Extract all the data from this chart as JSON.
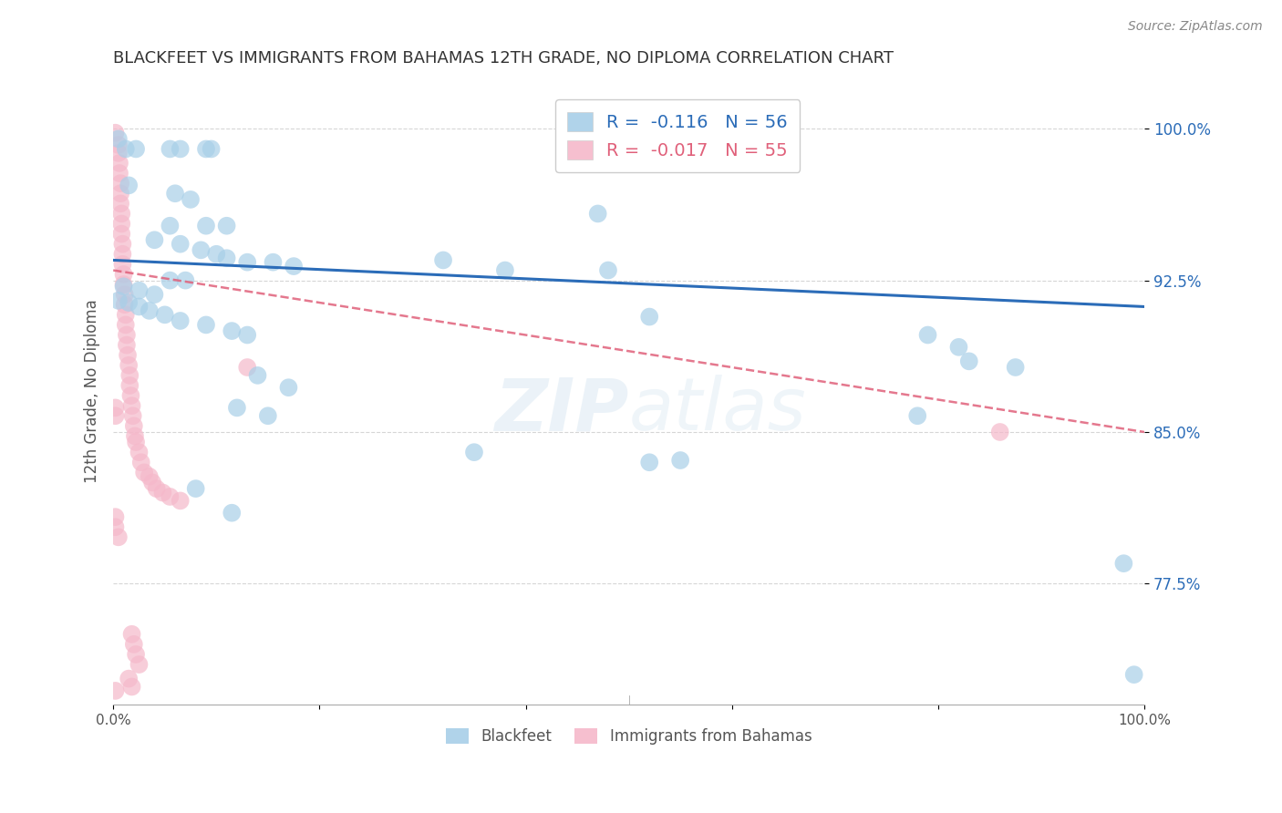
{
  "title": "BLACKFEET VS IMMIGRANTS FROM BAHAMAS 12TH GRADE, NO DIPLOMA CORRELATION CHART",
  "source": "Source: ZipAtlas.com",
  "ylabel": "12th Grade, No Diploma",
  "legend_label1": "Blackfeet",
  "legend_label2": "Immigrants from Bahamas",
  "r1": "-0.116",
  "n1": "56",
  "r2": "-0.017",
  "n2": "55",
  "watermark": "ZIPatlas",
  "xmin": 0.0,
  "xmax": 1.0,
  "ymin": 0.715,
  "ymax": 1.025,
  "yticks": [
    0.775,
    0.85,
    0.925,
    1.0
  ],
  "ytick_labels": [
    "77.5%",
    "85.0%",
    "92.5%",
    "100.0%"
  ],
  "blue_color": "#a8cfe8",
  "pink_color": "#f5b8ca",
  "blue_line_color": "#2b6cb8",
  "pink_line_color": "#e0607a",
  "blue_scatter": [
    [
      0.005,
      0.995
    ],
    [
      0.012,
      0.99
    ],
    [
      0.022,
      0.99
    ],
    [
      0.055,
      0.99
    ],
    [
      0.065,
      0.99
    ],
    [
      0.09,
      0.99
    ],
    [
      0.095,
      0.99
    ],
    [
      0.015,
      0.972
    ],
    [
      0.06,
      0.968
    ],
    [
      0.075,
      0.965
    ],
    [
      0.055,
      0.952
    ],
    [
      0.09,
      0.952
    ],
    [
      0.11,
      0.952
    ],
    [
      0.04,
      0.945
    ],
    [
      0.065,
      0.943
    ],
    [
      0.085,
      0.94
    ],
    [
      0.1,
      0.938
    ],
    [
      0.11,
      0.936
    ],
    [
      0.13,
      0.934
    ],
    [
      0.155,
      0.934
    ],
    [
      0.175,
      0.932
    ],
    [
      0.055,
      0.925
    ],
    [
      0.07,
      0.925
    ],
    [
      0.01,
      0.922
    ],
    [
      0.025,
      0.92
    ],
    [
      0.04,
      0.918
    ],
    [
      0.005,
      0.915
    ],
    [
      0.015,
      0.914
    ],
    [
      0.025,
      0.912
    ],
    [
      0.035,
      0.91
    ],
    [
      0.05,
      0.908
    ],
    [
      0.065,
      0.905
    ],
    [
      0.09,
      0.903
    ],
    [
      0.115,
      0.9
    ],
    [
      0.13,
      0.898
    ],
    [
      0.32,
      0.935
    ],
    [
      0.38,
      0.93
    ],
    [
      0.47,
      0.958
    ],
    [
      0.48,
      0.93
    ],
    [
      0.52,
      0.907
    ],
    [
      0.14,
      0.878
    ],
    [
      0.17,
      0.872
    ],
    [
      0.12,
      0.862
    ],
    [
      0.15,
      0.858
    ],
    [
      0.79,
      0.898
    ],
    [
      0.82,
      0.892
    ],
    [
      0.83,
      0.885
    ],
    [
      0.875,
      0.882
    ],
    [
      0.78,
      0.858
    ],
    [
      0.55,
      0.836
    ],
    [
      0.08,
      0.822
    ],
    [
      0.115,
      0.81
    ],
    [
      0.35,
      0.84
    ],
    [
      0.52,
      0.835
    ],
    [
      0.98,
      0.785
    ],
    [
      0.99,
      0.73
    ]
  ],
  "pink_scatter": [
    [
      0.002,
      0.998
    ],
    [
      0.005,
      0.992
    ],
    [
      0.005,
      0.988
    ],
    [
      0.006,
      0.983
    ],
    [
      0.006,
      0.978
    ],
    [
      0.007,
      0.973
    ],
    [
      0.007,
      0.968
    ],
    [
      0.007,
      0.963
    ],
    [
      0.008,
      0.958
    ],
    [
      0.008,
      0.953
    ],
    [
      0.008,
      0.948
    ],
    [
      0.009,
      0.943
    ],
    [
      0.009,
      0.938
    ],
    [
      0.009,
      0.933
    ],
    [
      0.01,
      0.928
    ],
    [
      0.01,
      0.923
    ],
    [
      0.011,
      0.918
    ],
    [
      0.011,
      0.913
    ],
    [
      0.012,
      0.908
    ],
    [
      0.012,
      0.903
    ],
    [
      0.013,
      0.898
    ],
    [
      0.013,
      0.893
    ],
    [
      0.014,
      0.888
    ],
    [
      0.015,
      0.883
    ],
    [
      0.016,
      0.878
    ],
    [
      0.016,
      0.873
    ],
    [
      0.017,
      0.868
    ],
    [
      0.018,
      0.863
    ],
    [
      0.019,
      0.858
    ],
    [
      0.02,
      0.853
    ],
    [
      0.021,
      0.848
    ],
    [
      0.022,
      0.845
    ],
    [
      0.025,
      0.84
    ],
    [
      0.027,
      0.835
    ],
    [
      0.03,
      0.83
    ],
    [
      0.035,
      0.828
    ],
    [
      0.038,
      0.825
    ],
    [
      0.042,
      0.822
    ],
    [
      0.048,
      0.82
    ],
    [
      0.055,
      0.818
    ],
    [
      0.065,
      0.816
    ],
    [
      0.13,
      0.882
    ],
    [
      0.002,
      0.808
    ],
    [
      0.002,
      0.803
    ],
    [
      0.005,
      0.798
    ],
    [
      0.018,
      0.75
    ],
    [
      0.02,
      0.745
    ],
    [
      0.022,
      0.74
    ],
    [
      0.025,
      0.735
    ],
    [
      0.015,
      0.728
    ],
    [
      0.018,
      0.724
    ],
    [
      0.002,
      0.722
    ],
    [
      0.86,
      0.85
    ],
    [
      0.002,
      0.862
    ],
    [
      0.002,
      0.858
    ]
  ]
}
